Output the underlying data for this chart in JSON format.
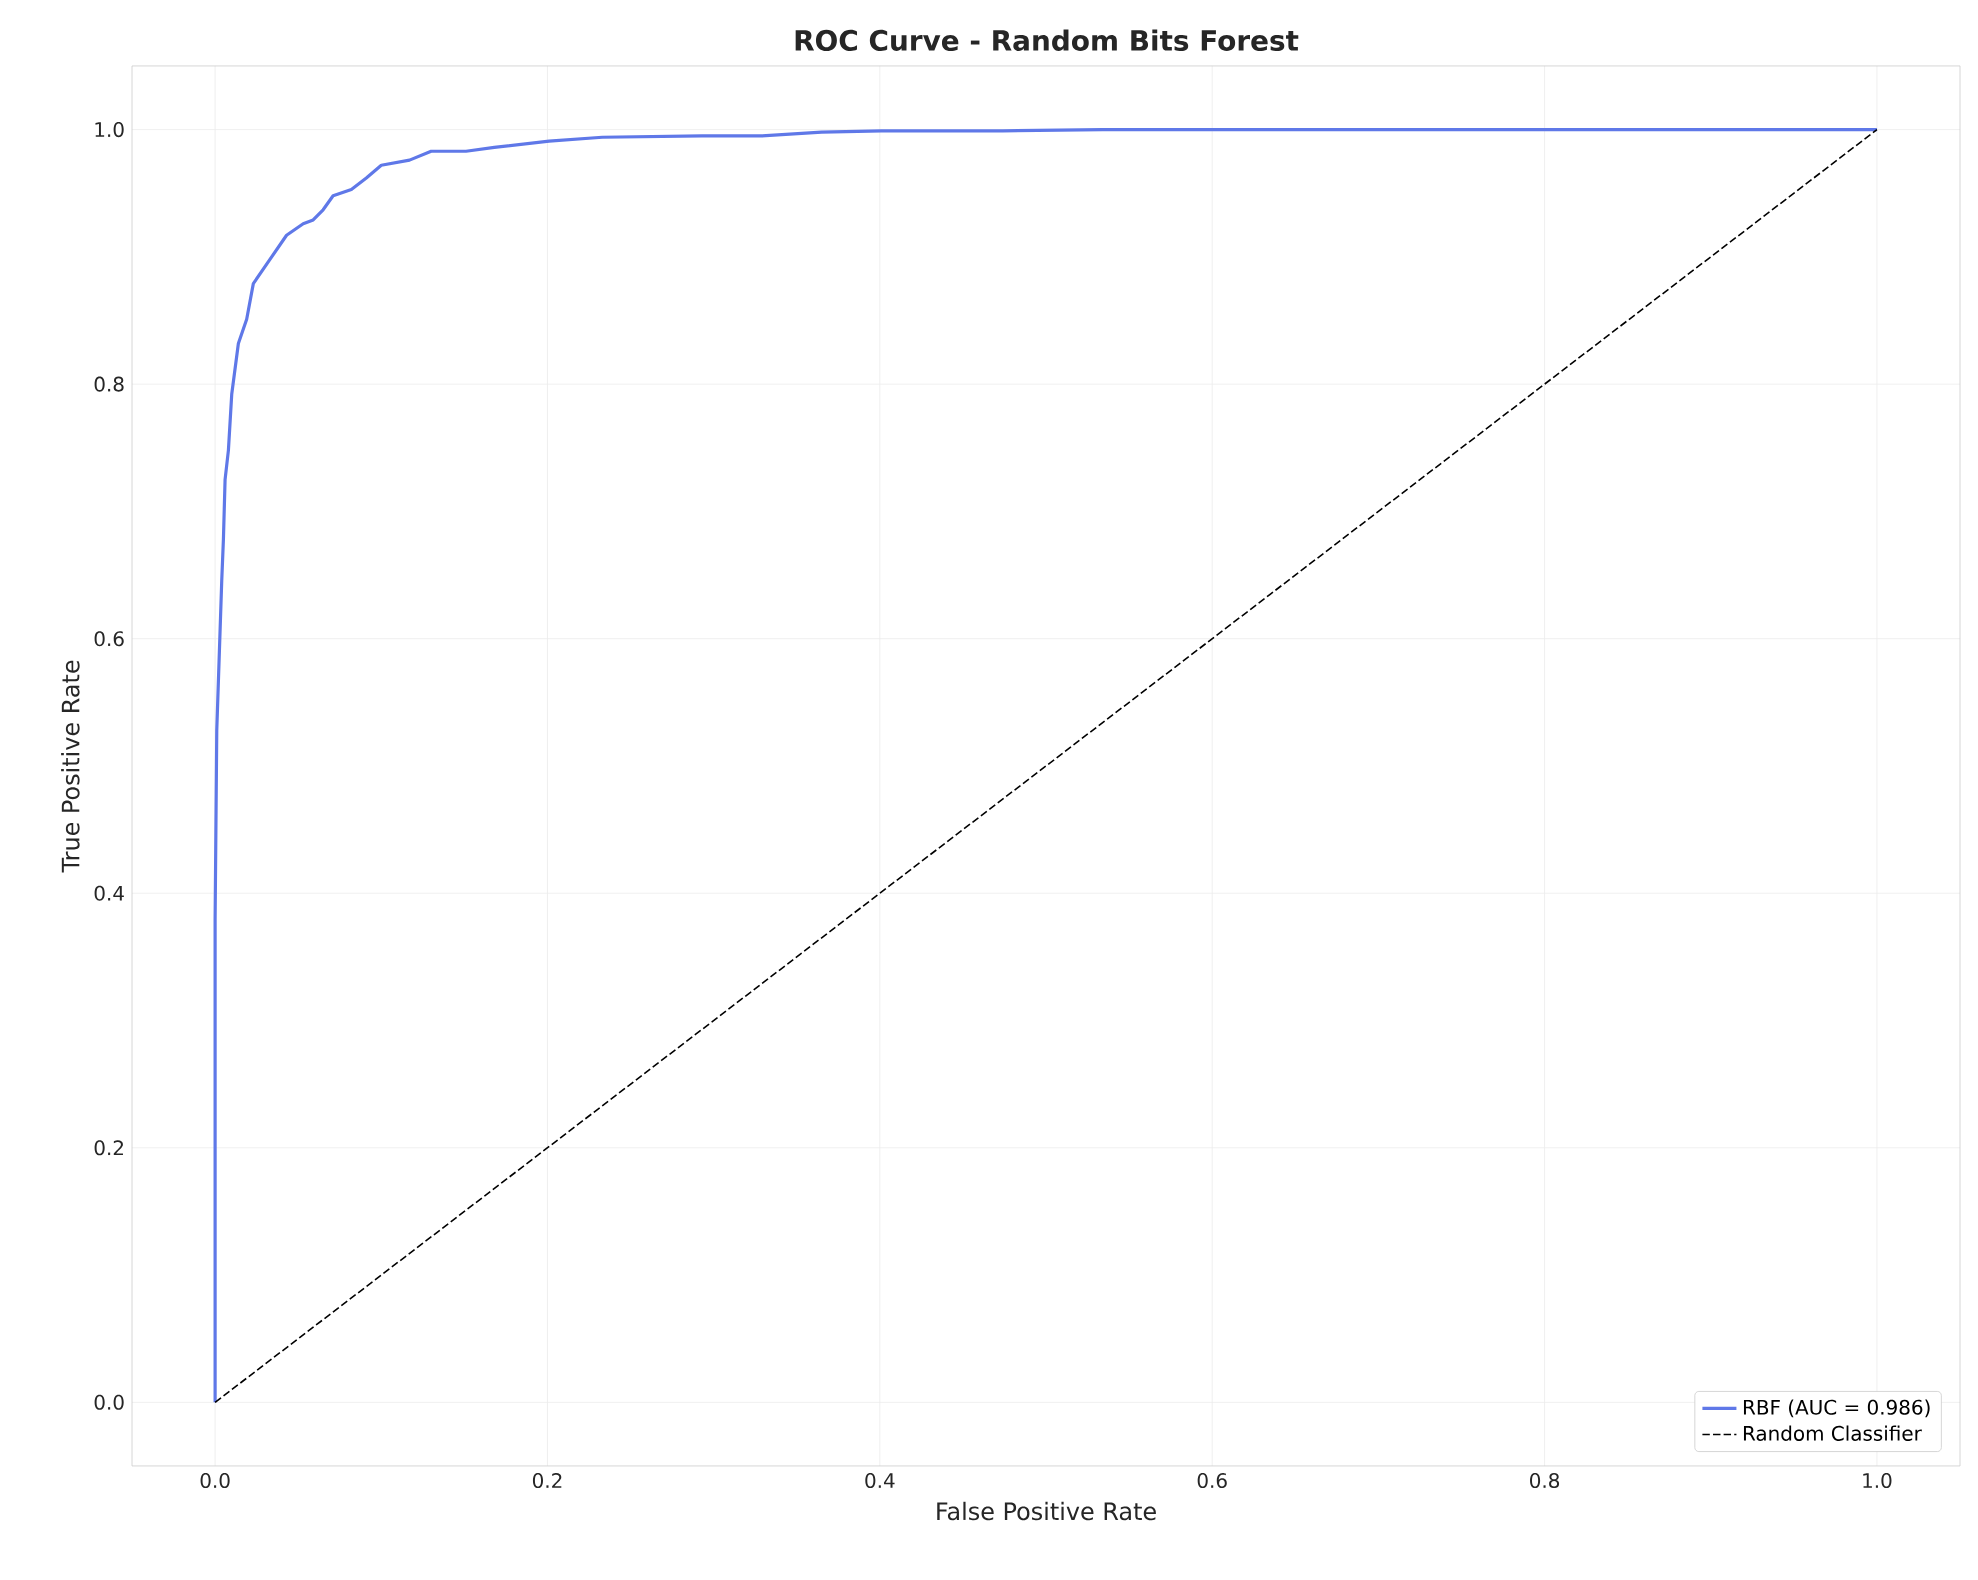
{
  "chart_data": {
    "type": "line",
    "title": "ROC Curve - Random Bits Forest",
    "xlabel": "False Positive Rate",
    "ylabel": "True Positive Rate",
    "xlim": [
      -0.05,
      1.05
    ],
    "ylim": [
      -0.05,
      1.05
    ],
    "xticks": [
      {
        "value": 0,
        "label": "0.0"
      },
      {
        "value": 0.2,
        "label": "0.2"
      },
      {
        "value": 0.4,
        "label": "0.4"
      },
      {
        "value": 0.6,
        "label": "0.6"
      },
      {
        "value": 0.8,
        "label": "0.8"
      },
      {
        "value": 1,
        "label": "1.0"
      }
    ],
    "yticks": [
      {
        "value": 0,
        "label": "0.0"
      },
      {
        "value": 0.2,
        "label": "0.2"
      },
      {
        "value": 0.4,
        "label": "0.4"
      },
      {
        "value": 0.6,
        "label": "0.6"
      },
      {
        "value": 0.8,
        "label": "0.8"
      },
      {
        "value": 1,
        "label": "1.0"
      }
    ],
    "grid": true,
    "legend": "bottom right",
    "marker": "none",
    "series": [
      {
        "name": "RBF (AUC = 0.986)",
        "color": "#5f78e8",
        "line_style": "solid",
        "x": [
          0,
          0,
          0.001,
          0.004,
          0.005,
          0.006,
          0.008,
          0.01,
          0.014,
          0.019,
          0.023,
          0.033,
          0.043,
          0.053,
          0.059,
          0.065,
          0.071,
          0.082,
          0.091,
          0.1,
          0.117,
          0.13,
          0.151,
          0.168,
          0.201,
          0.233,
          0.293,
          0.329,
          0.365,
          0.401,
          0.474,
          0.534,
          0.75,
          0.85,
          1.0
        ],
        "values": [
          0,
          0.379,
          0.528,
          0.646,
          0.678,
          0.725,
          0.748,
          0.792,
          0.832,
          0.851,
          0.879,
          0.898,
          0.917,
          0.926,
          0.929,
          0.937,
          0.948,
          0.953,
          0.962,
          0.972,
          0.976,
          0.983,
          0.983,
          0.986,
          0.991,
          0.994,
          0.995,
          0.995,
          0.998,
          0.999,
          0.999,
          1.0,
          1.0,
          1.0,
          1.0
        ]
      },
      {
        "name": "Random Classifier",
        "color": "#000000",
        "line_style": "dashed",
        "x": [
          0,
          1
        ],
        "values": [
          0,
          1
        ]
      }
    ]
  }
}
